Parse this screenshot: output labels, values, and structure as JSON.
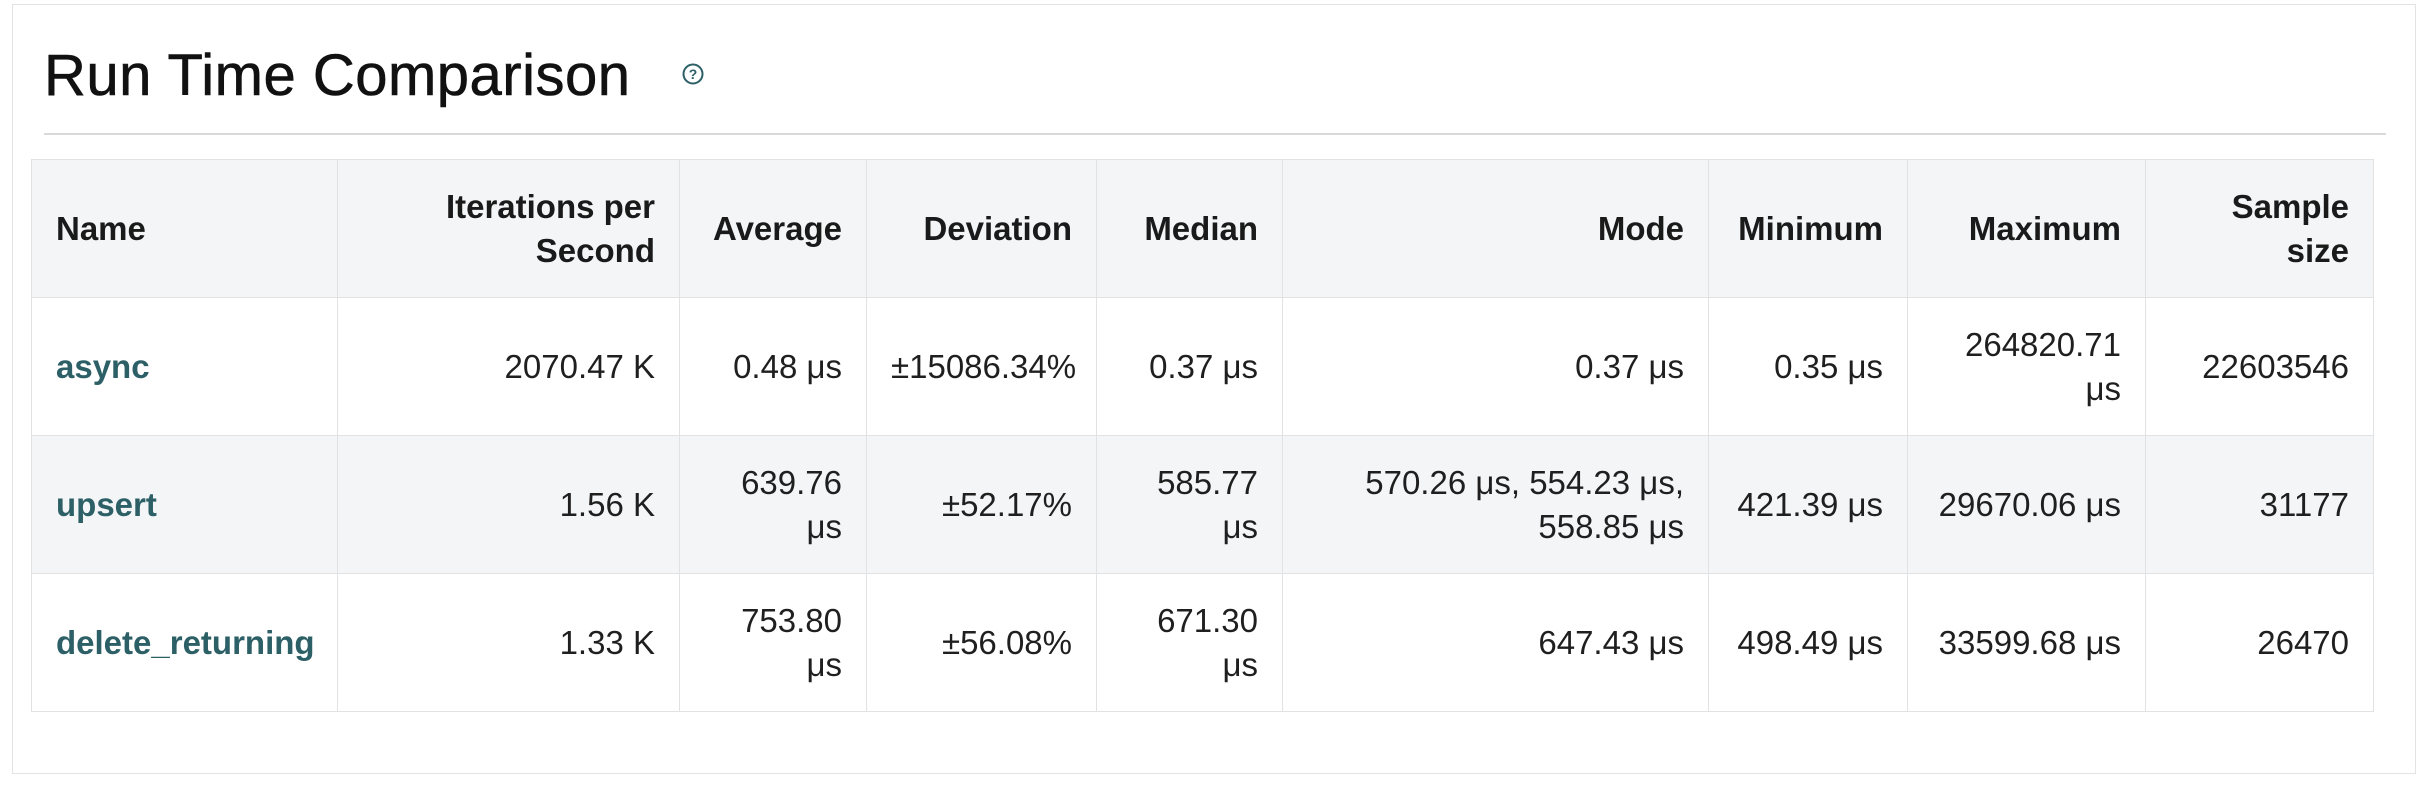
{
  "title": "Run Time Comparison",
  "help_icon": "help-icon",
  "colors": {
    "link": "#2c5f66",
    "header_bg": "#f4f5f6",
    "border": "#e2e2e2"
  },
  "table": {
    "headers": {
      "name": "Name",
      "ips": "Iterations per Second",
      "average": "Average",
      "deviation": "Deviation",
      "median": "Median",
      "mode": "Mode",
      "minimum": "Minimum",
      "maximum": "Maximum",
      "sample_size": "Sample size"
    },
    "rows": [
      {
        "name": "async",
        "ips": "2070.47 K",
        "average": "0.48 μs",
        "deviation": "±15086.34%",
        "median": "0.37 μs",
        "mode": "0.37 μs",
        "minimum": "0.35 μs",
        "maximum": "264820.71 μs",
        "sample_size": "22603546"
      },
      {
        "name": "upsert",
        "ips": "1.56 K",
        "average": "639.76 μs",
        "deviation": "±52.17%",
        "median": "585.77 μs",
        "mode": "570.26 μs, 554.23 μs, 558.85 μs",
        "minimum": "421.39 μs",
        "maximum": "29670.06 μs",
        "sample_size": "31177"
      },
      {
        "name": "delete_returning",
        "ips": "1.33 K",
        "average": "753.80 μs",
        "deviation": "±56.08%",
        "median": "671.30 μs",
        "mode": "647.43 μs",
        "minimum": "498.49 μs",
        "maximum": "33599.68 μs",
        "sample_size": "26470"
      }
    ]
  }
}
